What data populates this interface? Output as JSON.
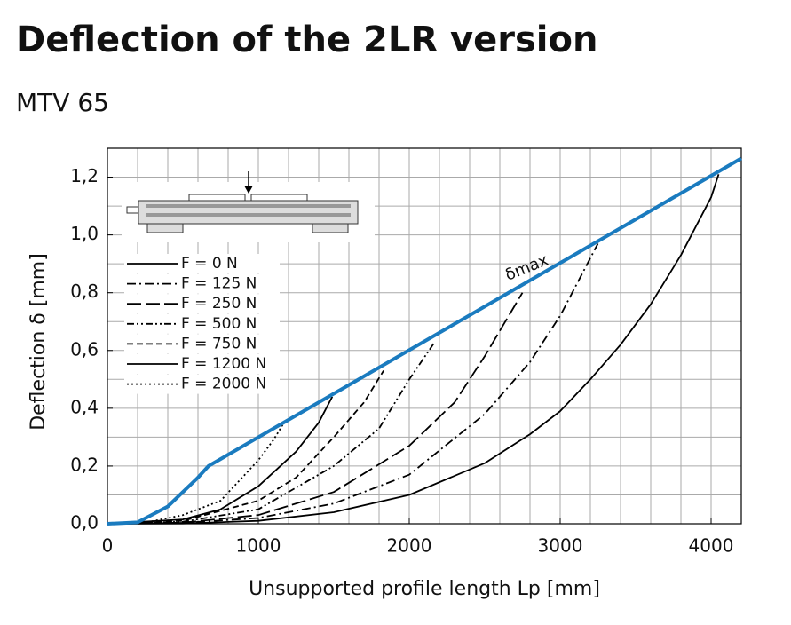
{
  "chart_data": {
    "type": "line",
    "title": "Deflection of the 2LR version",
    "subtitle": "MTV 65",
    "x_label": "Unsupported profile length Lp [mm]",
    "y_label": "Deflection δ [mm]",
    "xlim": [
      0,
      4200
    ],
    "ylim": [
      0,
      1.3
    ],
    "xticks": [
      0,
      1000,
      2000,
      3000,
      4000
    ],
    "yticks": [
      {
        "value": 0,
        "label": "0,0"
      },
      {
        "value": 0.2,
        "label": "0,2"
      },
      {
        "value": 0.4,
        "label": "0,4"
      },
      {
        "value": 0.6,
        "label": "0,6"
      },
      {
        "value": 0.8,
        "label": "0,8"
      },
      {
        "value": 1.0,
        "label": "1,0"
      },
      {
        "value": 1.2,
        "label": "1,2"
      }
    ],
    "xgrid": [
      200,
      400,
      600,
      800,
      1000,
      1200,
      1400,
      1600,
      1800,
      2000,
      2200,
      2400,
      2600,
      2800,
      3000,
      3200,
      3400,
      3600,
      3800,
      4000
    ],
    "ygrid": [
      0.1,
      0.2,
      0.3,
      0.4,
      0.5,
      0.6,
      0.7,
      0.8,
      0.9,
      1.0,
      1.1,
      1.2
    ],
    "grid": true,
    "legend": "upper left",
    "series": [
      {
        "name": "F = 0 N",
        "color": "#000000",
        "dash": "",
        "x": [
          0,
          500,
          1000,
          1500,
          2000,
          2500,
          2800,
          3000,
          3200,
          3400,
          3600,
          3800,
          4000,
          4050
        ],
        "values": [
          0,
          0.001,
          0.01,
          0.04,
          0.1,
          0.21,
          0.31,
          0.39,
          0.5,
          0.62,
          0.76,
          0.93,
          1.13,
          1.21
        ]
      },
      {
        "name": "F = 125 N",
        "color": "#000000",
        "dash": "10 4 2 4",
        "x": [
          0,
          500,
          1000,
          1500,
          2000,
          2500,
          2800,
          3000,
          3250
        ],
        "values": [
          0,
          0.003,
          0.02,
          0.07,
          0.17,
          0.38,
          0.56,
          0.72,
          0.97
        ]
      },
      {
        "name": "F = 250 N",
        "color": "#000000",
        "dash": "16 5",
        "x": [
          0,
          500,
          1000,
          1500,
          2000,
          2300,
          2500,
          2750
        ],
        "values": [
          0,
          0.004,
          0.03,
          0.11,
          0.27,
          0.42,
          0.58,
          0.8
        ]
      },
      {
        "name": "F = 500 N",
        "color": "#000000",
        "dash": "8 3 2 3 2 3",
        "x": [
          0,
          500,
          1000,
          1500,
          1800,
          2000,
          2170
        ],
        "values": [
          0,
          0.007,
          0.05,
          0.2,
          0.33,
          0.5,
          0.63
        ]
      },
      {
        "name": "F = 750 N",
        "color": "#000000",
        "dash": "7 4",
        "x": [
          0,
          500,
          1000,
          1250,
          1500,
          1700,
          1830
        ],
        "values": [
          0,
          0.01,
          0.08,
          0.16,
          0.3,
          0.42,
          0.53
        ]
      },
      {
        "name": "F = 1200 N",
        "color": "#000000",
        "dash": "",
        "x": [
          0,
          500,
          750,
          1000,
          1250,
          1400,
          1490
        ],
        "values": [
          0,
          0.015,
          0.05,
          0.13,
          0.25,
          0.35,
          0.44
        ]
      },
      {
        "name": "F = 2000 N",
        "color": "#000000",
        "dash": "2 3",
        "x": [
          0,
          250,
          500,
          750,
          1000,
          1100,
          1170
        ],
        "values": [
          0,
          0.004,
          0.03,
          0.08,
          0.22,
          0.29,
          0.35
        ]
      },
      {
        "name": "δmax",
        "color": "#1a7bbf",
        "dash": "",
        "x": [
          0,
          200,
          400,
          600,
          670,
          4200
        ],
        "values": [
          0,
          0.005,
          0.06,
          0.16,
          0.2,
          1.265
        ]
      }
    ]
  }
}
